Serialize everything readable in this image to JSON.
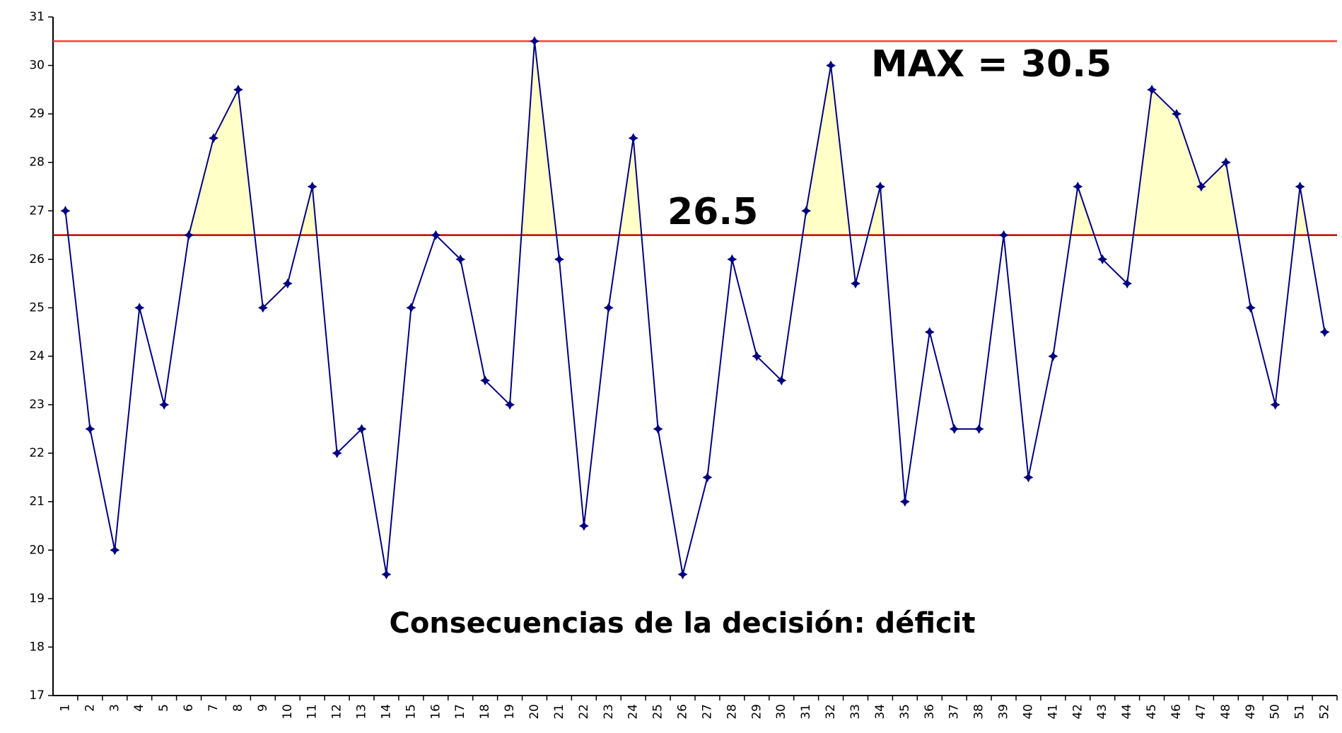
{
  "chart_data": {
    "type": "line",
    "title": "Consecuencias de la decisión: déficit",
    "categories": [
      "1",
      "2",
      "3",
      "4",
      "5",
      "6",
      "7",
      "8",
      "9",
      "10",
      "11",
      "12",
      "13",
      "14",
      "15",
      "16",
      "17",
      "18",
      "19",
      "20",
      "21",
      "22",
      "23",
      "24",
      "25",
      "26",
      "27",
      "28",
      "29",
      "30",
      "31",
      "32",
      "33",
      "34",
      "35",
      "36",
      "37",
      "38",
      "39",
      "40",
      "41",
      "42",
      "43",
      "44",
      "45",
      "46",
      "47",
      "48",
      "49",
      "50",
      "51",
      "52"
    ],
    "series": [
      {
        "color": "#000080",
        "values": [
          27,
          22.5,
          20,
          25,
          23,
          26.5,
          28.5,
          29.5,
          25,
          25.5,
          27.5,
          22,
          22.5,
          19.5,
          25,
          26.5,
          26,
          23.5,
          23,
          30.5,
          26,
          20.5,
          25,
          28.5,
          22.5,
          19.5,
          21.5,
          26,
          24,
          23.5,
          27,
          30,
          25.5,
          27.5,
          21,
          24.5,
          22.5,
          22.5,
          26.5,
          21.5,
          24,
          27.5,
          26,
          25.5,
          29.5,
          29,
          27.5,
          28,
          25,
          23,
          27.5,
          24.5
        ]
      }
    ],
    "reference_lines": [
      {
        "value": 30.5,
        "label": "MAX = 30.5",
        "color": "#ff4040"
      },
      {
        "value": 26.5,
        "label": "26.5",
        "color": "#cc0000"
      }
    ],
    "fill_above": 26.5,
    "fill_color": "#ffffc8",
    "ylim": [
      17,
      31
    ],
    "yticks": [
      17,
      18,
      19,
      20,
      21,
      22,
      23,
      24,
      25,
      26,
      27,
      28,
      29,
      30,
      31
    ],
    "grid": false
  }
}
